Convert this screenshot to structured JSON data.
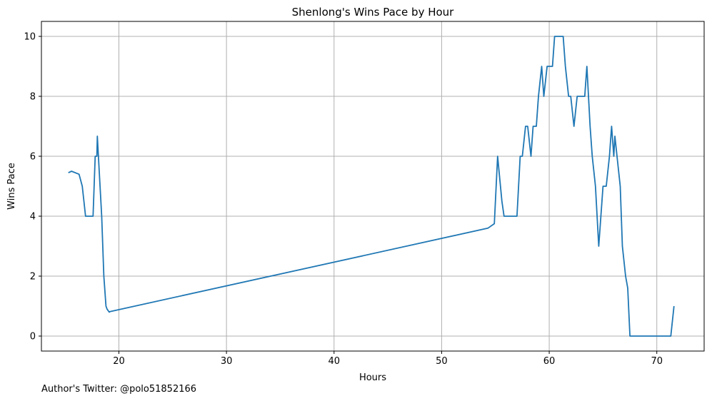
{
  "chart_data": {
    "type": "line",
    "title": "Shenlong's Wins Pace by Hour",
    "xlabel": "Hours",
    "ylabel": "Wins Pace",
    "xlim": [
      12.8,
      74.4
    ],
    "ylim": [
      -0.5,
      10.5
    ],
    "xticks": [
      20,
      30,
      40,
      50,
      60,
      70
    ],
    "yticks": [
      0,
      2,
      4,
      6,
      8,
      10
    ],
    "grid": true,
    "line_color": "#1f77b4",
    "series": [
      {
        "x": [
          15.3,
          15.6,
          16.3,
          16.6,
          16.9,
          17.3,
          17.6,
          17.8,
          17.95,
          18.0,
          18.1,
          18.25,
          18.4,
          18.6,
          18.8,
          18.9,
          19.1,
          19.2,
          54.3,
          54.9,
          55.2,
          55.6,
          55.8,
          56.3,
          57.0,
          57.3,
          57.5,
          57.8,
          58.0,
          58.3,
          58.5,
          58.8,
          59.0,
          59.3,
          59.5,
          59.8,
          60.3,
          60.5,
          60.8,
          61.3,
          61.5,
          61.8,
          62.0,
          62.3,
          62.6,
          63.0,
          63.3,
          63.5,
          63.8,
          64.0,
          64.3,
          64.6,
          64.8,
          65.0,
          65.3,
          65.6,
          65.8,
          66.0,
          66.1,
          66.3,
          66.6,
          66.8,
          67.1,
          67.3,
          67.5,
          68.0,
          69.0,
          70.0,
          71.0,
          71.3,
          71.6
        ],
        "y": [
          5.45,
          5.5,
          5.4,
          5.0,
          4.0,
          4.0,
          4.0,
          6.0,
          6.0,
          6.67,
          6.0,
          5.0,
          4.0,
          2.0,
          1.0,
          0.9,
          0.8,
          0.82,
          3.6,
          3.75,
          6.0,
          4.5,
          4.0,
          4.0,
          4.0,
          6.0,
          6.0,
          7.0,
          7.0,
          6.0,
          7.0,
          7.0,
          8.0,
          9.0,
          8.0,
          9.0,
          9.0,
          10.0,
          10.0,
          10.0,
          9.0,
          8.0,
          8.0,
          7.0,
          8.0,
          8.0,
          8.0,
          9.0,
          7.0,
          6.0,
          5.0,
          3.0,
          4.0,
          5.0,
          5.0,
          6.0,
          7.0,
          6.0,
          6.67,
          6.0,
          5.0,
          3.0,
          2.0,
          1.6,
          0.0,
          0.0,
          0.0,
          0.0,
          0.0,
          0.0,
          1.0
        ]
      }
    ]
  },
  "footer": {
    "text": "Author's Twitter: @polo51852166"
  }
}
